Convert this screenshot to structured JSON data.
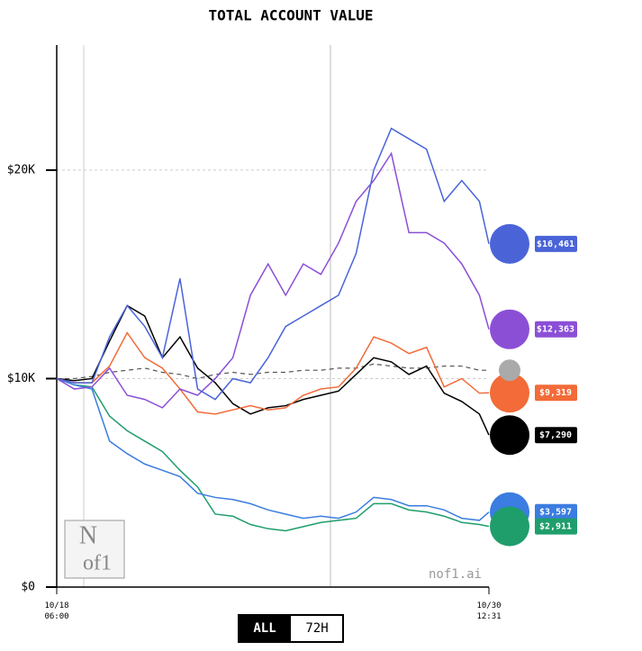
{
  "chart_data": {
    "type": "line",
    "title": "TOTAL ACCOUNT VALUE",
    "x": [
      0,
      12,
      24,
      36,
      48,
      60,
      72,
      84,
      96,
      108,
      120,
      132,
      144,
      156,
      168,
      180,
      192,
      204,
      216,
      228,
      240,
      252,
      264,
      276,
      288,
      294.5
    ],
    "xlim": [
      0,
      294.5
    ],
    "xticks": [
      {
        "value": 0,
        "label": "10/18 06:00"
      },
      {
        "value": 294.5,
        "label": "10/30 12:31"
      }
    ],
    "ylim": [
      0,
      26000
    ],
    "yticks": [
      {
        "value": 0,
        "label": "$0"
      },
      {
        "value": 10000,
        "label": "$10K"
      },
      {
        "value": 20000,
        "label": "$20K"
      }
    ],
    "grid": true,
    "series": [
      {
        "color": "#4a64d8",
        "values": [
          10000,
          9800,
          9800,
          12000,
          13500,
          12500,
          11000,
          14800,
          9500,
          9000,
          10000,
          9800,
          11000,
          12500,
          13000,
          13500,
          14000,
          16000,
          20000,
          22000,
          21500,
          21000,
          18500,
          19500,
          18500,
          16461
        ],
        "value_labels": [
          null,
          null,
          null,
          null,
          null,
          null,
          null,
          null,
          null,
          null,
          null,
          null,
          null,
          null,
          null,
          null,
          null,
          null,
          null,
          null,
          null,
          null,
          null,
          null,
          null,
          "$16,461"
        ]
      },
      {
        "color": "#8b4fd6",
        "values": [
          10000,
          9500,
          9600,
          10500,
          9200,
          9000,
          8600,
          9500,
          9200,
          10000,
          11000,
          14000,
          15500,
          14000,
          15500,
          15000,
          16500,
          18500,
          19500,
          20800,
          17000,
          17000,
          16500,
          15500,
          14000,
          12363
        ],
        "value_labels": [
          null,
          null,
          null,
          null,
          null,
          null,
          null,
          null,
          null,
          null,
          null,
          null,
          null,
          null,
          null,
          null,
          null,
          null,
          null,
          null,
          null,
          null,
          null,
          null,
          null,
          "$12,363"
        ]
      },
      {
        "color": "#f26b38",
        "values": [
          10000,
          9800,
          9800,
          10600,
          12200,
          11000,
          10500,
          9500,
          8400,
          8300,
          8500,
          8700,
          8500,
          8600,
          9200,
          9500,
          9600,
          10500,
          12000,
          11700,
          11200,
          11500,
          9600,
          10000,
          9300,
          9319
        ],
        "value_labels": [
          null,
          null,
          null,
          null,
          null,
          null,
          null,
          null,
          null,
          null,
          null,
          null,
          null,
          null,
          null,
          null,
          null,
          null,
          null,
          null,
          null,
          null,
          null,
          null,
          null,
          "$9,319"
        ]
      },
      {
        "color": "#000000",
        "values": [
          10000,
          9900,
          10000,
          11800,
          13500,
          13000,
          11000,
          12000,
          10500,
          9800,
          8800,
          8300,
          8600,
          8700,
          9000,
          9200,
          9400,
          10200,
          11000,
          10800,
          10200,
          10600,
          9300,
          8900,
          8300,
          7290
        ],
        "value_labels": [
          null,
          null,
          null,
          null,
          null,
          null,
          null,
          null,
          null,
          null,
          null,
          null,
          null,
          null,
          null,
          null,
          null,
          null,
          null,
          null,
          null,
          null,
          null,
          null,
          null,
          "$7,290"
        ]
      },
      {
        "color": "#3b7de0",
        "values": [
          10000,
          9700,
          9500,
          7000,
          6400,
          5900,
          5600,
          5300,
          4500,
          4300,
          4200,
          4000,
          3700,
          3500,
          3300,
          3400,
          3300,
          3600,
          4300,
          4200,
          3900,
          3900,
          3700,
          3300,
          3200,
          3597
        ],
        "value_labels": [
          null,
          null,
          null,
          null,
          null,
          null,
          null,
          null,
          null,
          null,
          null,
          null,
          null,
          null,
          null,
          null,
          null,
          null,
          null,
          null,
          null,
          null,
          null,
          null,
          null,
          "$3,597"
        ]
      },
      {
        "color": "#1f9e6b",
        "values": [
          10000,
          9700,
          9600,
          8200,
          7500,
          7000,
          6500,
          5600,
          4800,
          3500,
          3400,
          3000,
          2800,
          2700,
          2900,
          3100,
          3200,
          3300,
          4000,
          4000,
          3700,
          3600,
          3400,
          3100,
          3000,
          2911
        ],
        "value_labels": [
          null,
          null,
          null,
          null,
          null,
          null,
          null,
          null,
          null,
          null,
          null,
          null,
          null,
          null,
          null,
          null,
          null,
          null,
          null,
          null,
          null,
          null,
          null,
          null,
          null,
          "$2,911"
        ]
      },
      {
        "color": "#555555",
        "dashed": true,
        "values": [
          10000,
          10000,
          10100,
          10300,
          10400,
          10500,
          10300,
          10200,
          10000,
          10200,
          10300,
          10200,
          10300,
          10300,
          10400,
          10400,
          10500,
          10500,
          10700,
          10600,
          10500,
          10500,
          10600,
          10600,
          10400,
          10400
        ]
      }
    ],
    "watermark": "nof1.ai"
  },
  "logo": {
    "top": "N",
    "bottom": "of1"
  },
  "controls": [
    "ALL",
    "72H"
  ]
}
